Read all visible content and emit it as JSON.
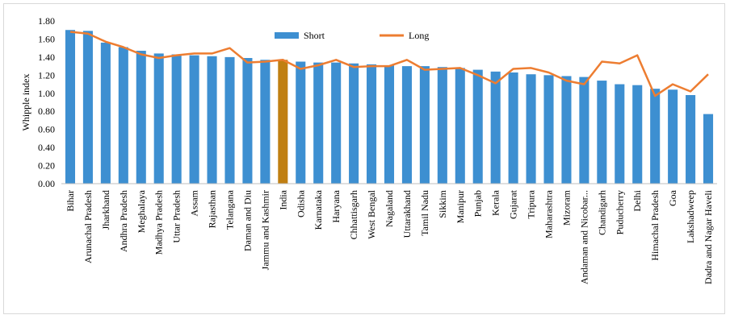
{
  "chart_data": {
    "type": "bar",
    "title": "",
    "xlabel": "",
    "ylabel": "Whipple index",
    "ylim": [
      0,
      1.8
    ],
    "yticks": [
      "0.00",
      "0.20",
      "0.40",
      "0.60",
      "0.80",
      "1.00",
      "1.20",
      "1.40",
      "1.60",
      "1.80"
    ],
    "grid": false,
    "legend_position": "top-center",
    "colors": {
      "short": "#3d8fd1",
      "long": "#ed7d31",
      "highlight": "#c07f12"
    },
    "highlight_category": "India",
    "categories": [
      "Bihar",
      "Arunachal Pradesh",
      "Jharkhand",
      "Andhra Pradesh",
      "Meghalaya",
      "Madhya Pradesh",
      "Uttar Pradesh",
      "Assam",
      "Rajasthan",
      "Telangana",
      "Daman and Diu",
      "Jammu and Kashmir",
      "India",
      "Odisha",
      "Karnataka",
      "Haryana",
      "Chhattisgarh",
      "West Bengal",
      "Nagaland",
      "Uttarakhand",
      "Tamil Nadu",
      "Sikkim",
      "Manipur",
      "Punjab",
      "Kerala",
      "Gujarat",
      "Tripura",
      "Maharashtra",
      "Mizoram",
      "Andaman and Nicobar...",
      "Chandigarh",
      "Puducherry",
      "Delhi",
      "Himachal Pradesh",
      "Goa",
      "Lakshadweep",
      "Dadra and Nagar Haveli"
    ],
    "series": [
      {
        "name": "Short",
        "type": "bar",
        "values": [
          1.7,
          1.69,
          1.56,
          1.51,
          1.47,
          1.44,
          1.43,
          1.42,
          1.41,
          1.4,
          1.39,
          1.37,
          1.37,
          1.35,
          1.34,
          1.34,
          1.33,
          1.32,
          1.31,
          1.3,
          1.3,
          1.29,
          1.28,
          1.26,
          1.24,
          1.23,
          1.21,
          1.2,
          1.19,
          1.18,
          1.14,
          1.1,
          1.09,
          1.05,
          1.04,
          0.98,
          0.77
        ]
      },
      {
        "name": "Long",
        "type": "line",
        "values": [
          1.68,
          1.66,
          1.57,
          1.51,
          1.43,
          1.39,
          1.42,
          1.44,
          1.44,
          1.5,
          1.34,
          1.35,
          1.37,
          1.27,
          1.31,
          1.37,
          1.29,
          1.3,
          1.3,
          1.37,
          1.26,
          1.27,
          1.28,
          1.2,
          1.11,
          1.27,
          1.28,
          1.23,
          1.14,
          1.1,
          1.35,
          1.33,
          1.42,
          0.97,
          1.1,
          1.02,
          1.21
        ]
      }
    ]
  }
}
